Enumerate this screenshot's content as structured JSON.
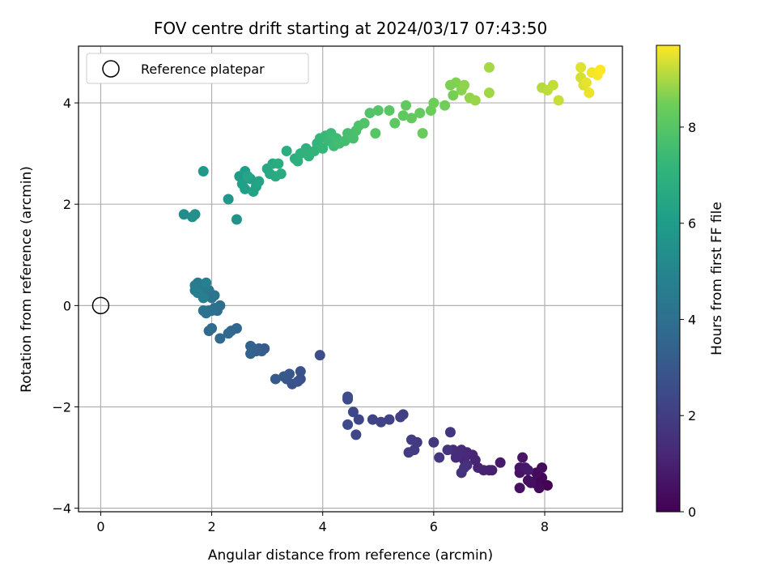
{
  "chart_data": {
    "type": "scatter",
    "title": "FOV centre drift starting at 2024/03/17 07:43:50",
    "xlabel": "Angular distance from reference (arcmin)",
    "ylabel": "Rotation from reference (arcmin)",
    "xlim": [
      -0.4,
      9.4
    ],
    "ylim": [
      -4.07,
      5.12
    ],
    "xticks": [
      0,
      2,
      4,
      6,
      8
    ],
    "xtick_labels": [
      "0",
      "2",
      "4",
      "6",
      "8"
    ],
    "yticks": [
      -4,
      -2,
      0,
      2,
      4
    ],
    "ytick_labels": [
      "−4",
      "−2",
      "0",
      "2",
      "4"
    ],
    "grid": true,
    "legend": {
      "position": "top-left",
      "entries": [
        "Reference platepar"
      ]
    },
    "reference_point": {
      "x": 0,
      "y": 0
    },
    "colorbar": {
      "label": "Hours from first FF file",
      "colormap": "viridis",
      "range": [
        0,
        9.7
      ],
      "ticks": [
        0,
        2,
        4,
        6,
        8
      ],
      "tick_labels": [
        "0",
        "2",
        "4",
        "6",
        "8"
      ]
    },
    "points": [
      {
        "x": 7.9,
        "y": -3.55,
        "t": 0.0
      },
      {
        "x": 8.05,
        "y": -3.55,
        "t": 0.05
      },
      {
        "x": 7.95,
        "y": -3.4,
        "t": 0.1
      },
      {
        "x": 7.85,
        "y": -3.45,
        "t": 0.15
      },
      {
        "x": 7.8,
        "y": -3.5,
        "t": 0.2
      },
      {
        "x": 7.9,
        "y": -3.6,
        "t": 0.25
      },
      {
        "x": 7.95,
        "y": -3.2,
        "t": 0.3
      },
      {
        "x": 7.85,
        "y": -3.3,
        "t": 0.35
      },
      {
        "x": 7.75,
        "y": -3.5,
        "t": 0.4
      },
      {
        "x": 7.7,
        "y": -3.45,
        "t": 0.45
      },
      {
        "x": 7.55,
        "y": -3.6,
        "t": 0.5
      },
      {
        "x": 7.55,
        "y": -3.3,
        "t": 0.55
      },
      {
        "x": 7.55,
        "y": -3.2,
        "t": 0.6
      },
      {
        "x": 7.6,
        "y": -3.0,
        "t": 0.65
      },
      {
        "x": 7.65,
        "y": -3.2,
        "t": 0.7
      },
      {
        "x": 7.7,
        "y": -3.25,
        "t": 0.75
      },
      {
        "x": 7.2,
        "y": -3.1,
        "t": 0.8
      },
      {
        "x": 7.0,
        "y": -3.25,
        "t": 0.9
      },
      {
        "x": 7.05,
        "y": -3.25,
        "t": 0.95
      },
      {
        "x": 6.9,
        "y": -3.25,
        "t": 1.0
      },
      {
        "x": 6.8,
        "y": -3.2,
        "t": 1.05
      },
      {
        "x": 6.75,
        "y": -3.05,
        "t": 1.1
      },
      {
        "x": 6.7,
        "y": -2.95,
        "t": 1.15
      },
      {
        "x": 6.6,
        "y": -2.9,
        "t": 1.2
      },
      {
        "x": 6.55,
        "y": -3.05,
        "t": 1.25
      },
      {
        "x": 6.5,
        "y": -2.85,
        "t": 1.3
      },
      {
        "x": 6.45,
        "y": -2.9,
        "t": 1.35
      },
      {
        "x": 6.4,
        "y": -3.0,
        "t": 1.4
      },
      {
        "x": 6.35,
        "y": -2.85,
        "t": 1.45
      },
      {
        "x": 6.6,
        "y": -3.15,
        "t": 1.5
      },
      {
        "x": 6.55,
        "y": -3.2,
        "t": 1.55
      },
      {
        "x": 6.5,
        "y": -3.3,
        "t": 1.6
      },
      {
        "x": 6.25,
        "y": -2.85,
        "t": 1.65
      },
      {
        "x": 6.3,
        "y": -2.5,
        "t": 1.7
      },
      {
        "x": 6.1,
        "y": -3.0,
        "t": 1.75
      },
      {
        "x": 6.0,
        "y": -2.7,
        "t": 1.8
      },
      {
        "x": 5.7,
        "y": -2.7,
        "t": 1.85
      },
      {
        "x": 5.65,
        "y": -2.85,
        "t": 1.9
      },
      {
        "x": 5.55,
        "y": -2.9,
        "t": 1.95
      },
      {
        "x": 5.6,
        "y": -2.65,
        "t": 2.0
      },
      {
        "x": 5.45,
        "y": -2.15,
        "t": 2.05
      },
      {
        "x": 5.4,
        "y": -2.2,
        "t": 2.1
      },
      {
        "x": 5.2,
        "y": -2.25,
        "t": 2.15
      },
      {
        "x": 5.05,
        "y": -2.3,
        "t": 2.2
      },
      {
        "x": 4.9,
        "y": -2.25,
        "t": 2.25
      },
      {
        "x": 4.65,
        "y": -2.25,
        "t": 2.3
      },
      {
        "x": 4.6,
        "y": -2.55,
        "t": 2.35
      },
      {
        "x": 4.55,
        "y": -2.1,
        "t": 2.4
      },
      {
        "x": 4.45,
        "y": -2.35,
        "t": 2.45
      },
      {
        "x": 4.45,
        "y": -1.85,
        "t": 2.5
      },
      {
        "x": 4.45,
        "y": -1.8,
        "t": 2.55
      },
      {
        "x": 3.95,
        "y": -0.98,
        "t": 2.6
      },
      {
        "x": 3.6,
        "y": -1.45,
        "t": 2.7
      },
      {
        "x": 3.6,
        "y": -1.3,
        "t": 2.75
      },
      {
        "x": 3.55,
        "y": -1.5,
        "t": 2.8
      },
      {
        "x": 3.45,
        "y": -1.55,
        "t": 2.85
      },
      {
        "x": 3.4,
        "y": -1.35,
        "t": 2.9
      },
      {
        "x": 3.35,
        "y": -1.45,
        "t": 2.95
      },
      {
        "x": 3.3,
        "y": -1.4,
        "t": 3.0
      },
      {
        "x": 3.15,
        "y": -1.45,
        "t": 3.05
      },
      {
        "x": 2.95,
        "y": -0.85,
        "t": 3.15
      },
      {
        "x": 2.9,
        "y": -0.9,
        "t": 3.2
      },
      {
        "x": 2.85,
        "y": -0.85,
        "t": 3.25
      },
      {
        "x": 2.8,
        "y": -0.9,
        "t": 3.3
      },
      {
        "x": 2.75,
        "y": -0.85,
        "t": 3.35
      },
      {
        "x": 2.7,
        "y": -0.8,
        "t": 3.4
      },
      {
        "x": 2.7,
        "y": -0.95,
        "t": 3.45
      },
      {
        "x": 2.45,
        "y": -0.45,
        "t": 3.55
      },
      {
        "x": 2.35,
        "y": -0.5,
        "t": 3.6
      },
      {
        "x": 2.3,
        "y": -0.55,
        "t": 3.65
      },
      {
        "x": 2.15,
        "y": -0.65,
        "t": 3.7
      },
      {
        "x": 2.0,
        "y": -0.45,
        "t": 3.75
      },
      {
        "x": 1.95,
        "y": -0.5,
        "t": 3.8
      },
      {
        "x": 2.1,
        "y": -0.1,
        "t": 3.85
      },
      {
        "x": 2.15,
        "y": 0.0,
        "t": 3.9
      },
      {
        "x": 2.05,
        "y": -0.05,
        "t": 3.95
      },
      {
        "x": 2.0,
        "y": -0.1,
        "t": 4.0
      },
      {
        "x": 1.95,
        "y": -0.1,
        "t": 4.05
      },
      {
        "x": 1.9,
        "y": -0.15,
        "t": 4.1
      },
      {
        "x": 1.85,
        "y": -0.1,
        "t": 4.15
      },
      {
        "x": 2.05,
        "y": 0.2,
        "t": 4.2
      },
      {
        "x": 2.0,
        "y": 0.15,
        "t": 4.25
      },
      {
        "x": 1.95,
        "y": 0.3,
        "t": 4.3
      },
      {
        "x": 1.9,
        "y": 0.25,
        "t": 4.35
      },
      {
        "x": 1.85,
        "y": 0.35,
        "t": 4.4
      },
      {
        "x": 1.8,
        "y": 0.4,
        "t": 4.45
      },
      {
        "x": 1.75,
        "y": 0.45,
        "t": 4.5
      },
      {
        "x": 1.7,
        "y": 0.4,
        "t": 4.55
      },
      {
        "x": 1.75,
        "y": 0.25,
        "t": 4.6
      },
      {
        "x": 1.7,
        "y": 0.3,
        "t": 4.65
      },
      {
        "x": 1.85,
        "y": 0.15,
        "t": 4.7
      },
      {
        "x": 1.9,
        "y": 0.45,
        "t": 4.75
      },
      {
        "x": 1.5,
        "y": 1.8,
        "t": 5.3
      },
      {
        "x": 1.65,
        "y": 1.75,
        "t": 5.4
      },
      {
        "x": 1.7,
        "y": 1.8,
        "t": 5.45
      },
      {
        "x": 2.45,
        "y": 1.7,
        "t": 5.6
      },
      {
        "x": 2.3,
        "y": 2.1,
        "t": 5.7
      },
      {
        "x": 1.85,
        "y": 2.65,
        "t": 5.8
      },
      {
        "x": 2.5,
        "y": 2.55,
        "t": 6.0
      },
      {
        "x": 2.6,
        "y": 2.65,
        "t": 6.05
      },
      {
        "x": 2.55,
        "y": 2.4,
        "t": 6.1
      },
      {
        "x": 2.6,
        "y": 2.3,
        "t": 6.15
      },
      {
        "x": 2.7,
        "y": 2.5,
        "t": 6.2
      },
      {
        "x": 2.75,
        "y": 2.25,
        "t": 6.25
      },
      {
        "x": 2.8,
        "y": 2.35,
        "t": 6.3
      },
      {
        "x": 2.85,
        "y": 2.45,
        "t": 6.35
      },
      {
        "x": 2.65,
        "y": 2.55,
        "t": 6.4
      },
      {
        "x": 3.0,
        "y": 2.7,
        "t": 6.5
      },
      {
        "x": 3.05,
        "y": 2.6,
        "t": 6.55
      },
      {
        "x": 3.1,
        "y": 2.8,
        "t": 6.6
      },
      {
        "x": 3.15,
        "y": 2.55,
        "t": 6.65
      },
      {
        "x": 3.25,
        "y": 2.6,
        "t": 6.7
      },
      {
        "x": 3.2,
        "y": 2.8,
        "t": 6.75
      },
      {
        "x": 3.35,
        "y": 3.05,
        "t": 6.8
      },
      {
        "x": 3.5,
        "y": 2.9,
        "t": 6.85
      },
      {
        "x": 3.55,
        "y": 2.85,
        "t": 6.9
      },
      {
        "x": 3.6,
        "y": 3.0,
        "t": 6.95
      },
      {
        "x": 3.7,
        "y": 3.1,
        "t": 7.0
      },
      {
        "x": 3.75,
        "y": 2.95,
        "t": 7.05
      },
      {
        "x": 3.85,
        "y": 3.05,
        "t": 7.1
      },
      {
        "x": 3.9,
        "y": 3.2,
        "t": 7.15
      },
      {
        "x": 3.95,
        "y": 3.3,
        "t": 7.2
      },
      {
        "x": 4.0,
        "y": 3.1,
        "t": 7.25
      },
      {
        "x": 4.05,
        "y": 3.35,
        "t": 7.3
      },
      {
        "x": 4.1,
        "y": 3.25,
        "t": 7.35
      },
      {
        "x": 4.15,
        "y": 3.4,
        "t": 7.4
      },
      {
        "x": 4.2,
        "y": 3.15,
        "t": 7.45
      },
      {
        "x": 4.25,
        "y": 3.3,
        "t": 7.5
      },
      {
        "x": 4.3,
        "y": 3.2,
        "t": 7.55
      },
      {
        "x": 4.4,
        "y": 3.25,
        "t": 7.6
      },
      {
        "x": 4.45,
        "y": 3.4,
        "t": 7.65
      },
      {
        "x": 4.55,
        "y": 3.3,
        "t": 7.7
      },
      {
        "x": 4.6,
        "y": 3.45,
        "t": 7.75
      },
      {
        "x": 4.65,
        "y": 3.55,
        "t": 7.8
      },
      {
        "x": 4.75,
        "y": 3.6,
        "t": 7.85
      },
      {
        "x": 4.85,
        "y": 3.8,
        "t": 7.9
      },
      {
        "x": 5.0,
        "y": 3.85,
        "t": 7.95
      },
      {
        "x": 4.95,
        "y": 3.4,
        "t": 8.0
      },
      {
        "x": 5.2,
        "y": 3.85,
        "t": 8.05
      },
      {
        "x": 5.3,
        "y": 3.6,
        "t": 8.1
      },
      {
        "x": 5.45,
        "y": 3.75,
        "t": 8.15
      },
      {
        "x": 5.5,
        "y": 3.95,
        "t": 8.2
      },
      {
        "x": 5.6,
        "y": 3.7,
        "t": 8.25
      },
      {
        "x": 5.75,
        "y": 3.8,
        "t": 8.3
      },
      {
        "x": 5.8,
        "y": 3.4,
        "t": 8.35
      },
      {
        "x": 5.95,
        "y": 3.85,
        "t": 8.4
      },
      {
        "x": 6.0,
        "y": 4.0,
        "t": 8.45
      },
      {
        "x": 6.2,
        "y": 3.95,
        "t": 8.5
      },
      {
        "x": 6.35,
        "y": 4.15,
        "t": 8.55
      },
      {
        "x": 6.3,
        "y": 4.35,
        "t": 8.6
      },
      {
        "x": 6.4,
        "y": 4.4,
        "t": 8.65
      },
      {
        "x": 6.5,
        "y": 4.25,
        "t": 8.7
      },
      {
        "x": 6.55,
        "y": 4.35,
        "t": 8.75
      },
      {
        "x": 6.65,
        "y": 4.1,
        "t": 8.8
      },
      {
        "x": 6.75,
        "y": 4.05,
        "t": 8.85
      },
      {
        "x": 7.0,
        "y": 4.2,
        "t": 8.9
      },
      {
        "x": 7.0,
        "y": 4.7,
        "t": 8.95
      },
      {
        "x": 7.95,
        "y": 4.3,
        "t": 9.1
      },
      {
        "x": 8.05,
        "y": 4.25,
        "t": 9.15
      },
      {
        "x": 8.15,
        "y": 4.35,
        "t": 9.2
      },
      {
        "x": 8.25,
        "y": 4.05,
        "t": 9.25
      },
      {
        "x": 8.65,
        "y": 4.5,
        "t": 9.35
      },
      {
        "x": 8.7,
        "y": 4.35,
        "t": 9.4
      },
      {
        "x": 8.65,
        "y": 4.7,
        "t": 9.45
      },
      {
        "x": 8.75,
        "y": 4.4,
        "t": 9.5
      },
      {
        "x": 8.8,
        "y": 4.2,
        "t": 9.55
      },
      {
        "x": 8.85,
        "y": 4.6,
        "t": 9.6
      },
      {
        "x": 8.95,
        "y": 4.55,
        "t": 9.65
      },
      {
        "x": 9.0,
        "y": 4.65,
        "t": 9.7
      }
    ]
  }
}
